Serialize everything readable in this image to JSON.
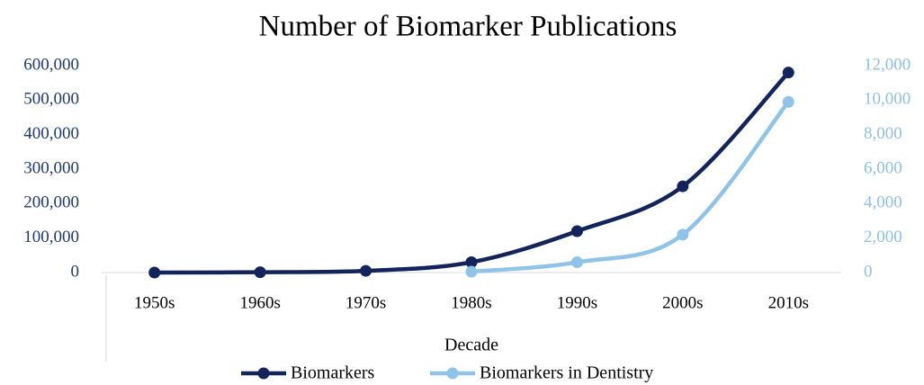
{
  "chart_data": {
    "type": "line",
    "title": "Number of Biomarker Publications",
    "x_label": "Decade",
    "categories": [
      "1950s",
      "1960s",
      "1970s",
      "1980s",
      "1990s",
      "2000s",
      "2010s"
    ],
    "series": [
      {
        "name": "Biomarkers",
        "color": "#13235c",
        "values": [
          0,
          1000,
          5000,
          30000,
          120000,
          250000,
          580000
        ]
      },
      {
        "name": "Biomarkers in Dentistry",
        "color": "#8fc3e8",
        "axis": "y2",
        "values": [
          null,
          null,
          null,
          50,
          600,
          2200,
          9900
        ]
      }
    ],
    "ylim": [
      0,
      600000
    ],
    "yticks": [
      0,
      {
        "value": 100000,
        "label": "100,000"
      },
      {
        "value": 200000,
        "label": "200,000"
      },
      {
        "value": 300000,
        "label": "300,000"
      },
      {
        "value": 400000,
        "label": "400,000"
      },
      {
        "value": 500000,
        "label": "500,000"
      },
      {
        "value": 600000,
        "label": "600,000"
      }
    ],
    "y2lim": [
      0,
      12000
    ],
    "y2ticks": [
      0,
      {
        "value": 2000,
        "label": "2,000"
      },
      {
        "value": 4000,
        "label": "4,000"
      },
      {
        "value": 6000,
        "label": "6,000"
      },
      {
        "value": 8000,
        "label": "8,000"
      },
      {
        "value": 10000,
        "label": "10,000"
      },
      {
        "value": 12000,
        "label": "12,000"
      }
    ],
    "legend": "bottom"
  }
}
